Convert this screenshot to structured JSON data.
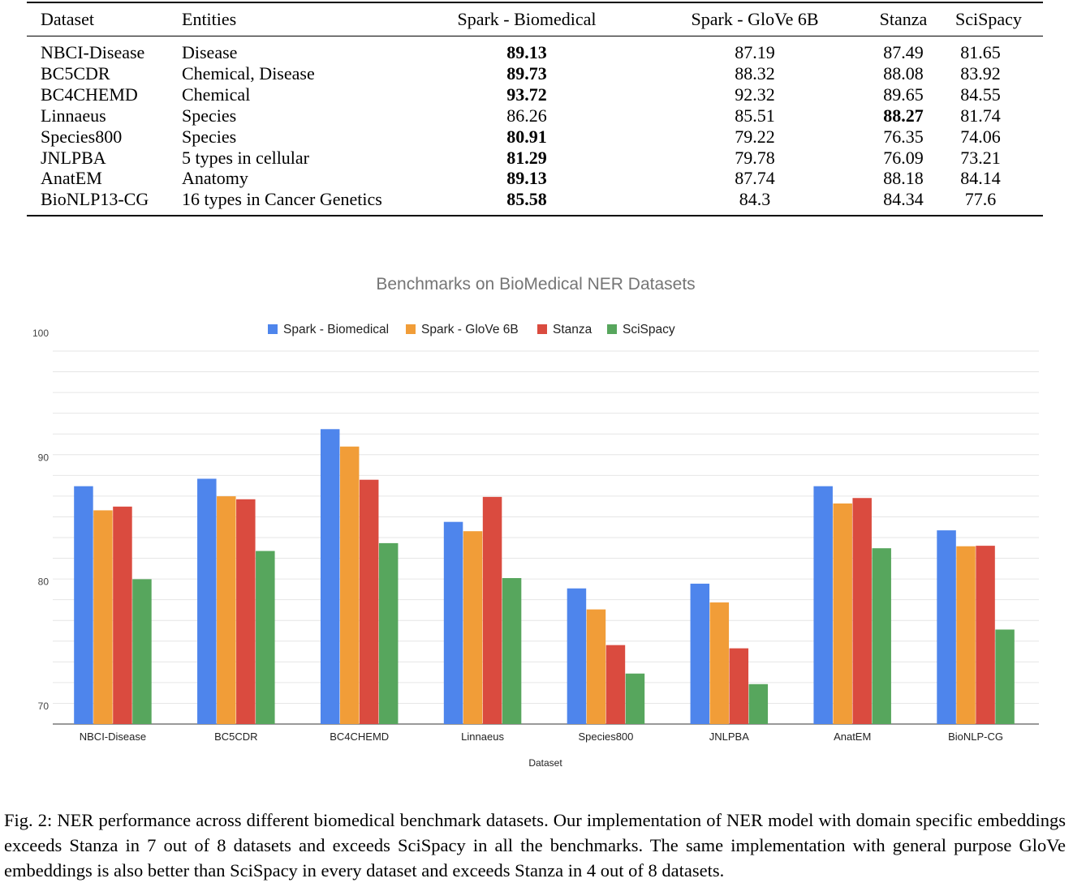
{
  "table": {
    "headers": [
      "Dataset",
      "Entities",
      "Spark - Biomedical",
      "Spark - GloVe 6B",
      "Stanza",
      "SciSpacy"
    ],
    "rows": [
      {
        "dataset": "NBCI-Disease",
        "entities": "Disease",
        "spark_bio": "89.13",
        "spark_glove": "87.19",
        "stanza": "87.49",
        "scispacy": "81.65",
        "bold": "spark_bio"
      },
      {
        "dataset": "BC5CDR",
        "entities": "Chemical, Disease",
        "spark_bio": "89.73",
        "spark_glove": "88.32",
        "stanza": "88.08",
        "scispacy": "83.92",
        "bold": "spark_bio"
      },
      {
        "dataset": "BC4CHEMD",
        "entities": "Chemical",
        "spark_bio": "93.72",
        "spark_glove": "92.32",
        "stanza": "89.65",
        "scispacy": "84.55",
        "bold": "spark_bio"
      },
      {
        "dataset": "Linnaeus",
        "entities": "Species",
        "spark_bio": "86.26",
        "spark_glove": "85.51",
        "stanza": "88.27",
        "scispacy": "81.74",
        "bold": "stanza"
      },
      {
        "dataset": "Species800",
        "entities": "Species",
        "spark_bio": "80.91",
        "spark_glove": "79.22",
        "stanza": "76.35",
        "scispacy": "74.06",
        "bold": "spark_bio"
      },
      {
        "dataset": "JNLPBA",
        "entities": "5 types in cellular",
        "spark_bio": "81.29",
        "spark_glove": "79.78",
        "stanza": "76.09",
        "scispacy": "73.21",
        "bold": "spark_bio"
      },
      {
        "dataset": "AnatEM",
        "entities": "Anatomy",
        "spark_bio": "89.13",
        "spark_glove": "87.74",
        "stanza": "88.18",
        "scispacy": "84.14",
        "bold": "spark_bio"
      },
      {
        "dataset": "BioNLP13-CG",
        "entities": "16 types in Cancer Genetics",
        "spark_bio": "85.58",
        "spark_glove": "84.3",
        "stanza": "84.34",
        "scispacy": "77.6",
        "bold": "spark_bio"
      }
    ]
  },
  "chart_data": {
    "type": "bar",
    "title": "Benchmarks on BioMedical NER Datasets",
    "xlabel": "Dataset",
    "ylabel": "",
    "ylim": [
      70,
      100
    ],
    "yticks": [
      "100",
      "90",
      "80",
      "70"
    ],
    "grid": true,
    "legend_position": "top",
    "categories": [
      "NBCI-Disease",
      "BC5CDR",
      "BC4CHEMD",
      "Linnaeus",
      "Species800",
      "JNLPBA",
      "AnatEM",
      "BioNLP-CG"
    ],
    "series": [
      {
        "name": "Spark - Biomedical",
        "color": "#4e85ec",
        "values": [
          89.13,
          89.73,
          93.72,
          86.26,
          80.91,
          81.29,
          89.13,
          85.58
        ]
      },
      {
        "name": "Spark - GloVe 6B",
        "color": "#f19d38",
        "values": [
          87.19,
          88.32,
          92.32,
          85.51,
          79.22,
          79.78,
          87.74,
          84.3
        ]
      },
      {
        "name": "Stanza",
        "color": "#da4b3f",
        "values": [
          87.49,
          88.08,
          89.65,
          88.27,
          76.35,
          76.09,
          88.18,
          84.34
        ]
      },
      {
        "name": "SciSpacy",
        "color": "#57a65d",
        "values": [
          81.65,
          83.92,
          84.55,
          81.74,
          74.06,
          73.21,
          84.14,
          77.6
        ]
      }
    ]
  },
  "caption": "Fig. 2: NER performance across different biomedical benchmark datasets. Our implementation of NER model with domain specific embeddings exceeds Stanza in 7 out of 8 datasets and exceeds SciSpacy in all the benchmarks. The same implementation with general purpose GloVe embeddings is also better than SciSpacy in every dataset and exceeds Stanza in 4 out of 8 datasets."
}
